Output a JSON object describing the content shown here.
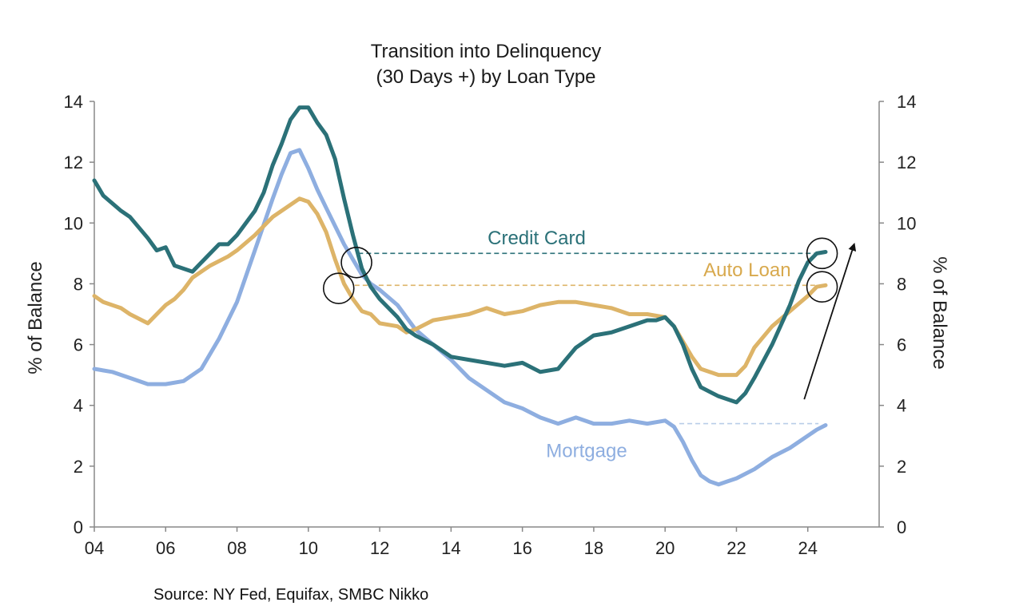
{
  "chart_data": {
    "type": "line",
    "title": [
      "Transition into Delinquency",
      "(30 Days +) by Loan Type"
    ],
    "ylabel_left": "% of Balance",
    "ylabel_right": "% of Balance",
    "ylim": [
      0,
      14
    ],
    "yticks": [
      0,
      2,
      4,
      6,
      8,
      10,
      12,
      14
    ],
    "xlim": [
      2004,
      2026
    ],
    "xticks": [
      {
        "value": 2004,
        "label": "04"
      },
      {
        "value": 2006,
        "label": "06"
      },
      {
        "value": 2008,
        "label": "08"
      },
      {
        "value": 2010,
        "label": "10"
      },
      {
        "value": 2012,
        "label": "12"
      },
      {
        "value": 2014,
        "label": "14"
      },
      {
        "value": 2016,
        "label": "16"
      },
      {
        "value": 2018,
        "label": "18"
      },
      {
        "value": 2020,
        "label": "20"
      },
      {
        "value": 2022,
        "label": "22"
      },
      {
        "value": 2024,
        "label": "24"
      }
    ],
    "series": [
      {
        "name": "Credit Card",
        "color": "#2b7178",
        "label_color": "#2b7178",
        "points": [
          [
            2004.0,
            11.4
          ],
          [
            2004.25,
            10.9
          ],
          [
            2004.75,
            10.4
          ],
          [
            2005.0,
            10.2
          ],
          [
            2005.5,
            9.5
          ],
          [
            2005.75,
            9.1
          ],
          [
            2006.0,
            9.2
          ],
          [
            2006.25,
            8.6
          ],
          [
            2006.75,
            8.4
          ],
          [
            2007.0,
            8.7
          ],
          [
            2007.5,
            9.3
          ],
          [
            2007.75,
            9.3
          ],
          [
            2008.0,
            9.6
          ],
          [
            2008.5,
            10.4
          ],
          [
            2008.75,
            11.0
          ],
          [
            2009.0,
            11.9
          ],
          [
            2009.25,
            12.6
          ],
          [
            2009.5,
            13.4
          ],
          [
            2009.75,
            13.8
          ],
          [
            2010.0,
            13.8
          ],
          [
            2010.25,
            13.3
          ],
          [
            2010.5,
            12.9
          ],
          [
            2010.75,
            12.1
          ],
          [
            2011.0,
            10.8
          ],
          [
            2011.25,
            9.6
          ],
          [
            2011.5,
            8.5
          ],
          [
            2011.75,
            7.9
          ],
          [
            2012.0,
            7.5
          ],
          [
            2012.25,
            7.2
          ],
          [
            2012.5,
            6.9
          ],
          [
            2012.75,
            6.5
          ],
          [
            2013.0,
            6.3
          ],
          [
            2013.5,
            6.0
          ],
          [
            2014.0,
            5.6
          ],
          [
            2014.5,
            5.5
          ],
          [
            2015.0,
            5.4
          ],
          [
            2015.5,
            5.3
          ],
          [
            2016.0,
            5.4
          ],
          [
            2016.5,
            5.1
          ],
          [
            2017.0,
            5.2
          ],
          [
            2017.5,
            5.9
          ],
          [
            2018.0,
            6.3
          ],
          [
            2018.5,
            6.4
          ],
          [
            2019.0,
            6.6
          ],
          [
            2019.5,
            6.8
          ],
          [
            2019.75,
            6.8
          ],
          [
            2020.0,
            6.9
          ],
          [
            2020.25,
            6.6
          ],
          [
            2020.5,
            6.0
          ],
          [
            2020.75,
            5.2
          ],
          [
            2021.0,
            4.6
          ],
          [
            2021.5,
            4.3
          ],
          [
            2022.0,
            4.1
          ],
          [
            2022.25,
            4.4
          ],
          [
            2022.5,
            4.9
          ],
          [
            2023.0,
            6.0
          ],
          [
            2023.5,
            7.3
          ],
          [
            2023.75,
            8.1
          ],
          [
            2024.0,
            8.7
          ],
          [
            2024.25,
            9.0
          ],
          [
            2024.5,
            9.05
          ]
        ]
      },
      {
        "name": "Auto Loan",
        "color": "#ddb468",
        "label_color": "#d8a94d",
        "points": [
          [
            2004.0,
            7.6
          ],
          [
            2004.25,
            7.4
          ],
          [
            2004.75,
            7.2
          ],
          [
            2005.0,
            7.0
          ],
          [
            2005.5,
            6.7
          ],
          [
            2005.75,
            7.0
          ],
          [
            2006.0,
            7.3
          ],
          [
            2006.25,
            7.5
          ],
          [
            2006.5,
            7.8
          ],
          [
            2006.75,
            8.2
          ],
          [
            2007.0,
            8.4
          ],
          [
            2007.25,
            8.6
          ],
          [
            2007.75,
            8.9
          ],
          [
            2008.0,
            9.1
          ],
          [
            2008.5,
            9.6
          ],
          [
            2008.75,
            9.9
          ],
          [
            2009.0,
            10.2
          ],
          [
            2009.5,
            10.6
          ],
          [
            2009.75,
            10.8
          ],
          [
            2010.0,
            10.7
          ],
          [
            2010.25,
            10.3
          ],
          [
            2010.5,
            9.7
          ],
          [
            2010.75,
            8.8
          ],
          [
            2011.0,
            8.0
          ],
          [
            2011.25,
            7.5
          ],
          [
            2011.5,
            7.1
          ],
          [
            2011.75,
            7.0
          ],
          [
            2012.0,
            6.7
          ],
          [
            2012.5,
            6.6
          ],
          [
            2012.75,
            6.4
          ],
          [
            2013.0,
            6.5
          ],
          [
            2013.5,
            6.8
          ],
          [
            2014.0,
            6.9
          ],
          [
            2014.5,
            7.0
          ],
          [
            2015.0,
            7.2
          ],
          [
            2015.5,
            7.0
          ],
          [
            2016.0,
            7.1
          ],
          [
            2016.5,
            7.3
          ],
          [
            2017.0,
            7.4
          ],
          [
            2017.5,
            7.4
          ],
          [
            2018.0,
            7.3
          ],
          [
            2018.5,
            7.2
          ],
          [
            2019.0,
            7.0
          ],
          [
            2019.5,
            7.0
          ],
          [
            2020.0,
            6.9
          ],
          [
            2020.25,
            6.6
          ],
          [
            2020.5,
            6.1
          ],
          [
            2020.75,
            5.6
          ],
          [
            2021.0,
            5.2
          ],
          [
            2021.5,
            5.0
          ],
          [
            2022.0,
            5.0
          ],
          [
            2022.25,
            5.3
          ],
          [
            2022.5,
            5.9
          ],
          [
            2023.0,
            6.6
          ],
          [
            2023.5,
            7.1
          ],
          [
            2024.0,
            7.6
          ],
          [
            2024.25,
            7.9
          ],
          [
            2024.5,
            7.95
          ]
        ]
      },
      {
        "name": "Mortgage",
        "color": "#8eaee0",
        "label_color": "#8eaee0",
        "points": [
          [
            2004.0,
            5.2
          ],
          [
            2004.5,
            5.1
          ],
          [
            2005.0,
            4.9
          ],
          [
            2005.5,
            4.7
          ],
          [
            2006.0,
            4.7
          ],
          [
            2006.5,
            4.8
          ],
          [
            2007.0,
            5.2
          ],
          [
            2007.5,
            6.2
          ],
          [
            2008.0,
            7.4
          ],
          [
            2008.5,
            9.1
          ],
          [
            2009.0,
            10.8
          ],
          [
            2009.25,
            11.6
          ],
          [
            2009.5,
            12.3
          ],
          [
            2009.75,
            12.4
          ],
          [
            2010.0,
            11.8
          ],
          [
            2010.25,
            11.1
          ],
          [
            2010.5,
            10.5
          ],
          [
            2010.75,
            9.9
          ],
          [
            2011.0,
            9.3
          ],
          [
            2011.25,
            8.8
          ],
          [
            2011.5,
            8.3
          ],
          [
            2011.75,
            8.0
          ],
          [
            2012.0,
            7.8
          ],
          [
            2012.5,
            7.3
          ],
          [
            2013.0,
            6.5
          ],
          [
            2013.5,
            6.0
          ],
          [
            2014.0,
            5.5
          ],
          [
            2014.5,
            4.9
          ],
          [
            2015.0,
            4.5
          ],
          [
            2015.5,
            4.1
          ],
          [
            2016.0,
            3.9
          ],
          [
            2016.5,
            3.6
          ],
          [
            2017.0,
            3.4
          ],
          [
            2017.5,
            3.6
          ],
          [
            2018.0,
            3.4
          ],
          [
            2018.5,
            3.4
          ],
          [
            2019.0,
            3.5
          ],
          [
            2019.5,
            3.4
          ],
          [
            2020.0,
            3.5
          ],
          [
            2020.25,
            3.3
          ],
          [
            2020.5,
            2.8
          ],
          [
            2020.75,
            2.2
          ],
          [
            2021.0,
            1.7
          ],
          [
            2021.25,
            1.5
          ],
          [
            2021.5,
            1.4
          ],
          [
            2021.75,
            1.5
          ],
          [
            2022.0,
            1.6
          ],
          [
            2022.5,
            1.9
          ],
          [
            2023.0,
            2.3
          ],
          [
            2023.5,
            2.6
          ],
          [
            2024.0,
            3.0
          ],
          [
            2024.25,
            3.2
          ],
          [
            2024.5,
            3.35
          ]
        ]
      }
    ],
    "reference_lines": [
      {
        "series": "Credit Card",
        "y": 9.0,
        "x_start": 2011.4,
        "x_end": 2024.3,
        "color": "#2b7178"
      },
      {
        "series": "Auto Loan",
        "y": 7.95,
        "x_start": 2011.3,
        "x_end": 2024.3,
        "color": "#ddb468"
      },
      {
        "series": "Mortgage",
        "y": 3.4,
        "x_start": 2020.4,
        "x_end": 2024.3,
        "color": "#b8cde8"
      }
    ],
    "annotations": [
      {
        "type": "circle",
        "x": 2010.85,
        "y": 7.85
      },
      {
        "type": "circle",
        "x": 2011.35,
        "y": 8.7
      },
      {
        "type": "circle",
        "x": 2024.4,
        "y": 9.0
      },
      {
        "type": "circle",
        "x": 2024.4,
        "y": 7.9
      },
      {
        "type": "arrow",
        "from": [
          2023.9,
          4.2
        ],
        "to": [
          2025.3,
          9.3
        ]
      }
    ],
    "series_labels": [
      {
        "series": "Credit Card",
        "text": "Credit Card",
        "x": 2016.4,
        "y": 9.3
      },
      {
        "series": "Auto Loan",
        "text": "Auto Loan",
        "x": 2022.3,
        "y": 8.25
      },
      {
        "series": "Mortgage",
        "text": "Mortgage",
        "x": 2017.8,
        "y": 2.3
      }
    ]
  },
  "source": "Source: NY Fed, Equifax, SMBC Nikko"
}
